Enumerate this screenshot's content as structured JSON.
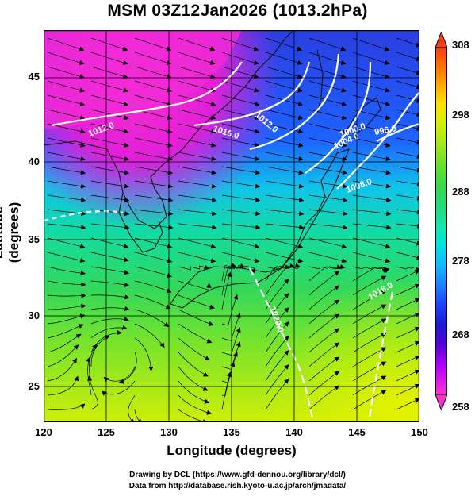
{
  "title": "MSM 03Z12Jan2026 (1013.2hPa)",
  "axes": {
    "xlabel": "Longitude (degrees)",
    "ylabel": "Latitude  (degrees)",
    "x_ticks": [
      "120",
      "125",
      "130",
      "135",
      "140",
      "145",
      "150"
    ],
    "y_ticks": [
      "45",
      "40",
      "35",
      "30",
      "25"
    ]
  },
  "colorbar": {
    "ticks": [
      "308",
      "298",
      "288",
      "278",
      "268",
      "258"
    ],
    "range": [
      258,
      308
    ]
  },
  "contour_labels": [
    "1012.0",
    "1016.0",
    "1012.0",
    "1000.0",
    "1004.0",
    "996.0",
    "1008.0",
    "1020.0",
    "1016.0"
  ],
  "credits": {
    "line1": "Drawing by DCL (https://www.gfd-dennou.org/library/dcl/)",
    "line2": "Data from http://database.rish.kyoto-u.ac.jp/arch/jmadata/"
  },
  "colors": {
    "land_outline": "#000000",
    "isobar": "#ffffff",
    "streamline": "#000000",
    "cold": "#ff2fd0",
    "warm": "#d8f000"
  }
}
